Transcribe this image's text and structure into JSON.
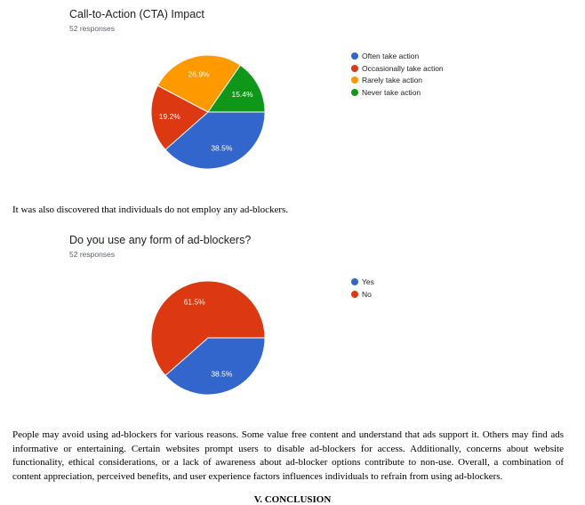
{
  "cta": {
    "title": "Call-to-Action (CTA) Impact",
    "responses": "52 responses"
  },
  "sentence": "It was also discovered that individuals do not employ any ad-blockers.",
  "adblock": {
    "title": "Do you use any form of ad-blockers?",
    "responses": "52 responses"
  },
  "paragraph": "People may avoid using ad-blockers for various reasons. Some value free content and understand that ads support it. Others may find ads informative or entertaining. Certain websites prompt users to disable ad-blockers for access. Additionally, concerns about website functionality, ethical considerations, or a lack of awareness about ad-blocker options contribute to non-use. Overall, a combination of content appreciation, perceived benefits, and user experience factors influences individuals to refrain from using ad-blockers.",
  "conclusion": "V. CONCLUSION",
  "chart_data": [
    {
      "type": "pie",
      "title": "Call-to-Action (CTA) Impact",
      "legend_position": "right",
      "slices": [
        {
          "label": "Often take action",
          "value": 38.5,
          "display": "38.5%",
          "color": "#3366cc"
        },
        {
          "label": "Occasionally take action",
          "value": 19.2,
          "display": "19.2%",
          "color": "#dc3912"
        },
        {
          "label": "Rarely take action",
          "value": 26.9,
          "display": "26.9%",
          "color": "#ff9900"
        },
        {
          "label": "Never take action",
          "value": 15.4,
          "display": "15.4%",
          "color": "#109618"
        }
      ]
    },
    {
      "type": "pie",
      "title": "Do you use any form of ad-blockers?",
      "legend_position": "right",
      "slices": [
        {
          "label": "Yes",
          "value": 38.5,
          "display": "38.5%",
          "color": "#3366cc"
        },
        {
          "label": "No",
          "value": 61.5,
          "display": "61.5%",
          "color": "#dc3912"
        }
      ]
    }
  ]
}
